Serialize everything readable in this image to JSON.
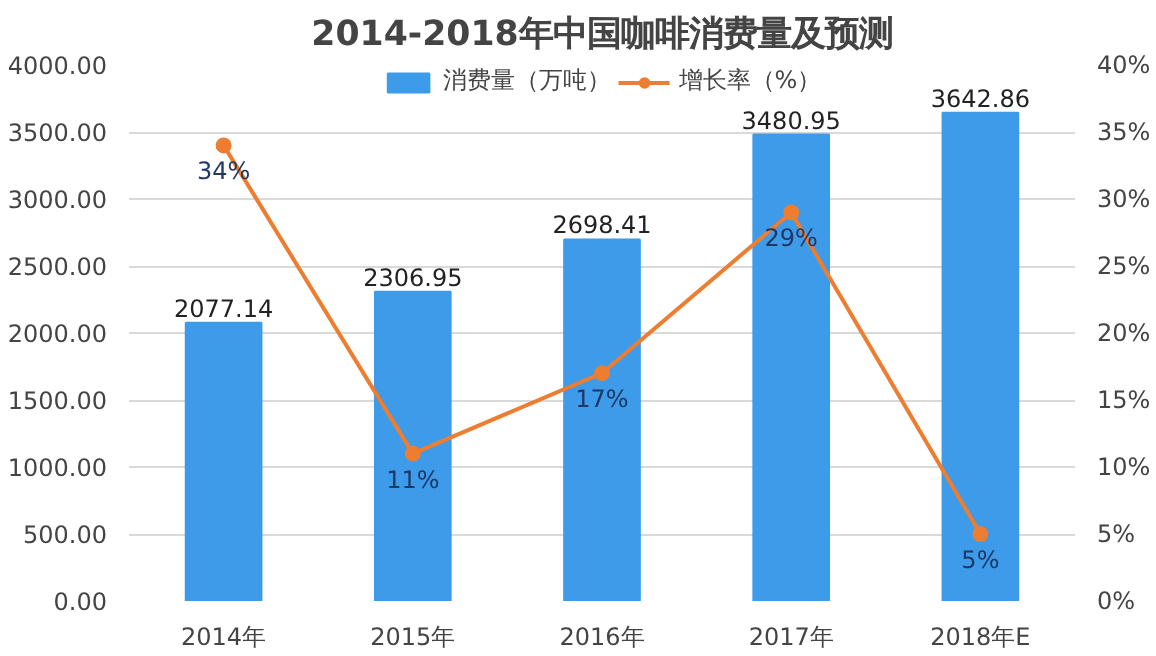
{
  "chart_data": {
    "type": "bar",
    "title": "2014-2018年中国咖啡消费量及预测",
    "categories": [
      "2014年",
      "2015年",
      "2016年",
      "2017年",
      "2018年E"
    ],
    "series": [
      {
        "name": "消费量（万吨）",
        "color": "#3d9be9",
        "values": [
          2077.14,
          2306.95,
          2698.41,
          3480.95,
          3642.86
        ],
        "value_labels": [
          "2077.14",
          "2306.95",
          "2698.41",
          "3480.95",
          "3642.86"
        ]
      },
      {
        "name": "增长率（%）",
        "type": "line",
        "axis": "y2",
        "color": "#ed7d31",
        "values": [
          34,
          11,
          17,
          29,
          5
        ],
        "value_labels": [
          "34%",
          "11%",
          "17%",
          "29%",
          "5%"
        ]
      }
    ],
    "ylim": [
      0,
      4000
    ],
    "yticks": [
      {
        "value": 0,
        "label": "0.00"
      },
      {
        "value": 500,
        "label": "500.00"
      },
      {
        "value": 1000,
        "label": "1000.00"
      },
      {
        "value": 1500,
        "label": "1500.00"
      },
      {
        "value": 2000,
        "label": "2000.00"
      },
      {
        "value": 2500,
        "label": "2500.00"
      },
      {
        "value": 3000,
        "label": "3000.00"
      },
      {
        "value": 3500,
        "label": "3500.00"
      },
      {
        "value": 4000,
        "label": "4000.00"
      }
    ],
    "y2lim": [
      0,
      40
    ],
    "y2ticks": [
      {
        "value": 0,
        "label": "0%"
      },
      {
        "value": 5,
        "label": "5%"
      },
      {
        "value": 10,
        "label": "10%"
      },
      {
        "value": 15,
        "label": "15%"
      },
      {
        "value": 20,
        "label": "20%"
      },
      {
        "value": 25,
        "label": "25%"
      },
      {
        "value": 30,
        "label": "30%"
      },
      {
        "value": 35,
        "label": "35%"
      },
      {
        "value": 40,
        "label": "40%"
      }
    ],
    "grid": "y",
    "legend": "top",
    "marker": "circle",
    "line_style": "solid"
  }
}
